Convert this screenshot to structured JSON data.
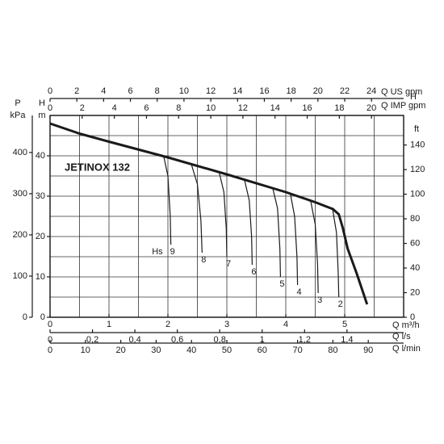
{
  "chart_data": {
    "type": "line",
    "title": "JETINOX 132",
    "axes": {
      "us_gpm": {
        "label": "Q US gpm",
        "lim": [
          0,
          26.4
        ],
        "ticks": [
          0,
          2,
          4,
          6,
          8,
          10,
          12,
          14,
          16,
          18,
          20,
          22,
          24
        ]
      },
      "imp_gpm": {
        "label": "Q IMP gpm",
        "lim": [
          0,
          22
        ],
        "ticks": [
          0,
          2,
          4,
          6,
          8,
          10,
          12,
          14,
          16,
          18,
          20
        ]
      },
      "m3h": {
        "label": "Q m³/h",
        "lim": [
          0,
          6
        ],
        "ticks": [
          0,
          1,
          2,
          3,
          4,
          5
        ]
      },
      "ls": {
        "label": "Q l/s",
        "lim": [
          0,
          1.667
        ],
        "ticks": [
          0,
          {
            "value": 0.2,
            "label": "0,2"
          },
          {
            "value": 0.4,
            "label": "0,4"
          },
          {
            "value": 0.6,
            "label": "0,6"
          },
          {
            "value": 0.8,
            "label": "0,8"
          },
          1,
          {
            "value": 1.2,
            "label": "1,2"
          },
          {
            "value": 1.4,
            "label": "1,4"
          }
        ]
      },
      "lmin": {
        "label": "Q l/min",
        "lim": [
          0,
          100
        ],
        "ticks": [
          0,
          10,
          20,
          30,
          40,
          50,
          60,
          70,
          80,
          90
        ]
      },
      "kpa": {
        "label": [
          "P",
          "kPa"
        ],
        "lim": [
          0,
          490
        ],
        "ticks": [
          0,
          100,
          200,
          300,
          400
        ]
      },
      "m": {
        "label": [
          "H",
          "m"
        ],
        "lim": [
          0,
          50
        ],
        "ticks": [
          0,
          10,
          20,
          30,
          40
        ]
      },
      "ft": {
        "label": [
          "H",
          "ft"
        ],
        "lim": [
          0,
          164
        ],
        "ticks": [
          0,
          20,
          40,
          60,
          80,
          100,
          120,
          140
        ]
      }
    },
    "grid_x": [
      0.5,
      1,
      1.5,
      2,
      2.5,
      3,
      3.5,
      4,
      4.5,
      5,
      5.5
    ],
    "grid_y": [
      5,
      10,
      15,
      20,
      25,
      30,
      35,
      40,
      45
    ],
    "color": "#1a1a1a",
    "curve": {
      "x": [
        0,
        0.5,
        1,
        2,
        3,
        4,
        4.5,
        4.8,
        4.9,
        4.97,
        5.05,
        5.2,
        5.38
      ],
      "values": [
        48,
        45.5,
        43.5,
        39.6,
        35.4,
        31,
        28.5,
        26.8,
        25.5,
        22,
        17,
        11,
        3.2
      ]
    },
    "hs_label": "Hs",
    "hs_curves": [
      {
        "name": "9",
        "x": [
          1.93,
          2.0,
          2.04,
          2.05
        ],
        "values": [
          39.8,
          35,
          25,
          18
        ]
      },
      {
        "name": "8",
        "x": [
          2.4,
          2.5,
          2.56,
          2.58
        ],
        "values": [
          37.8,
          33,
          24,
          16
        ]
      },
      {
        "name": "7",
        "x": [
          2.87,
          2.95,
          2.99,
          3.0
        ],
        "values": [
          35.9,
          31,
          22,
          15
        ]
      },
      {
        "name": "6",
        "x": [
          3.3,
          3.38,
          3.42,
          3.43
        ],
        "values": [
          34,
          29,
          20,
          13
        ]
      },
      {
        "name": "5",
        "x": [
          3.78,
          3.86,
          3.9,
          3.91
        ],
        "values": [
          31.9,
          27,
          17,
          10
        ]
      },
      {
        "name": "4",
        "x": [
          4.08,
          4.15,
          4.19,
          4.2
        ],
        "values": [
          30.5,
          25,
          15,
          8
        ]
      },
      {
        "name": "3",
        "x": [
          4.42,
          4.5,
          4.54,
          4.55
        ],
        "values": [
          29,
          23,
          13,
          6
        ]
      },
      {
        "name": "2",
        "x": [
          4.79,
          4.86,
          4.89,
          4.9
        ],
        "values": [
          27.2,
          21,
          11,
          5
        ]
      }
    ]
  }
}
